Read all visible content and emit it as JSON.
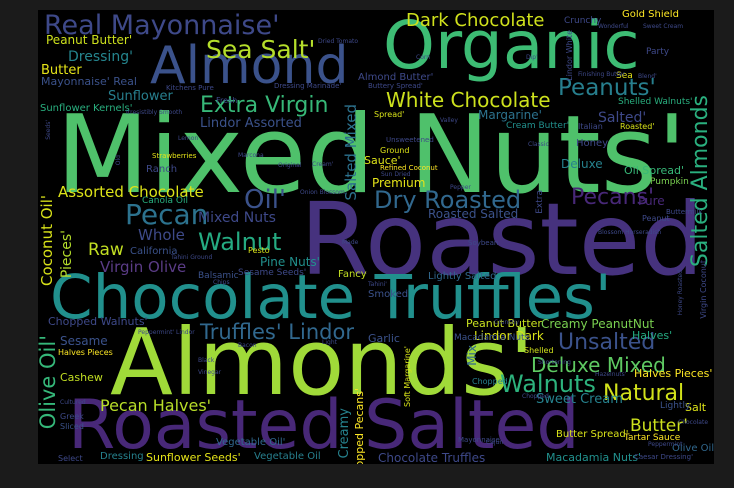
{
  "words": [
    {
      "id": "mixed-nuts",
      "text": "Mixed Nuts'",
      "color": "#4fc16b"
    },
    {
      "id": "roasted-big",
      "text": "Roasted",
      "color": "#46327e"
    },
    {
      "id": "chocolate-truffles-big",
      "text": "Chocolate Truffles'",
      "color": "#21908d"
    },
    {
      "id": "almonds-big",
      "text": "Almonds'",
      "color": "#a0da39"
    },
    {
      "id": "roasted-salted-big",
      "text": "Roasted Salted",
      "color": "#482878"
    },
    {
      "id": "organic",
      "text": "Organic",
      "color": "#3dbc74"
    },
    {
      "id": "almond",
      "text": "Almond",
      "color": "#3b528b"
    },
    {
      "id": "real-mayonnaise",
      "text": "Real Mayonnaise'",
      "color": "#3e4989"
    },
    {
      "id": "sea-salt",
      "text": "Sea Salt'",
      "color": "#b5de2b"
    },
    {
      "id": "dark-chocolate",
      "text": "Dark Chocolate",
      "color": "#d0e11c"
    },
    {
      "id": "peanuts",
      "text": "Peanuts'",
      "color": "#277f8e"
    },
    {
      "id": "white-chocolate",
      "text": "White Chocolate",
      "color": "#cde11d"
    },
    {
      "id": "extra-virgin",
      "text": "Extra Virgin",
      "color": "#37b878"
    },
    {
      "id": "salted-almonds",
      "text": "Salted Almonds",
      "color": "#2ab07f"
    },
    {
      "id": "oil",
      "text": "Oil'",
      "color": "#3b528b"
    },
    {
      "id": "dry-roasted",
      "text": "Dry Roasted",
      "color": "#31688e"
    },
    {
      "id": "pecans",
      "text": "Pecans'",
      "color": "#482878"
    },
    {
      "id": "pecan",
      "text": "Pecan",
      "color": "#2c728e"
    },
    {
      "id": "walnut",
      "text": "Walnut",
      "color": "#25ab82"
    },
    {
      "id": "assorted-chocolate",
      "text": "Assorted Chocolate",
      "color": "#dde318"
    },
    {
      "id": "unsalted",
      "text": "Unsalted",
      "color": "#3b528b"
    },
    {
      "id": "deluxe-mixed",
      "text": "Deluxe Mixed",
      "color": "#5ec962"
    },
    {
      "id": "walnuts",
      "text": "Walnuts",
      "color": "#2db27d"
    },
    {
      "id": "natural",
      "text": "Natural",
      "color": "#d2e21b"
    },
    {
      "id": "truffles-lindor",
      "text": "Truffles' Lindor",
      "color": "#31688e"
    },
    {
      "id": "olive-oil-v",
      "text": "Olive Oil'",
      "color": "#35b779"
    },
    {
      "id": "pecan-halves",
      "text": "Pecan Halves'",
      "color": "#b8de29"
    },
    {
      "id": "butter-r",
      "text": "Butter'",
      "color": "#cde11d"
    },
    {
      "id": "coconut-oil-v",
      "text": "Coconut Oil'",
      "color": "#d8e219"
    },
    {
      "id": "pieces-v",
      "text": "Pieces'",
      "color": "#b5de2b"
    },
    {
      "id": "raw",
      "text": "Raw",
      "color": "#c2df23"
    },
    {
      "id": "whole",
      "text": "Whole",
      "color": "#3e4a89"
    },
    {
      "id": "mixed-nuts-small",
      "text": "Mixed Nuts",
      "color": "#3e4989"
    },
    {
      "id": "virgin-olive",
      "text": "Virgin Olive",
      "color": "#5b3c87"
    },
    {
      "id": "salted-mixed-v",
      "text": "Salted Mixed",
      "color": "#2c728e"
    },
    {
      "id": "peanut-butter-tl",
      "text": "Peanut Butter'",
      "color": "#cde11d"
    },
    {
      "id": "dressing-tl",
      "text": "Dressing'",
      "color": "#25858e"
    },
    {
      "id": "butter-l",
      "text": "Butter",
      "color": "#e5e419"
    },
    {
      "id": "mayonnaise-real",
      "text": "Mayonnaise' Real",
      "color": "#3b528b"
    },
    {
      "id": "sunflower",
      "text": "Sunflower",
      "color": "#277f8e"
    },
    {
      "id": "sunflower-kernels",
      "text": "Sunflower Kernels'",
      "color": "#29af7f"
    },
    {
      "id": "lindor-assorted",
      "text": "Lindor Assorted",
      "color": "#3b528b"
    },
    {
      "id": "creamy-peanutnut",
      "text": "Creamy PeanutNut",
      "color": "#7ad151"
    },
    {
      "id": "sweet-cream",
      "text": "Sweet Cream",
      "color": "#26828e"
    },
    {
      "id": "lindor-dark",
      "text": "Lindor Dark",
      "color": "#d8e219"
    },
    {
      "id": "peanut-butter-r",
      "text": "Peanut Butter",
      "color": "#c8e020"
    },
    {
      "id": "macadamia-nuts-b",
      "text": "Macadamia Nuts'",
      "color": "#21908d"
    },
    {
      "id": "chocolate-truffles-b",
      "text": "Chocolate Truffles",
      "color": "#3e4989"
    },
    {
      "id": "sunflower-seeds",
      "text": "Sunflower Seeds'",
      "color": "#e5e419"
    },
    {
      "id": "vegetable-oil",
      "text": "Vegetable Oil'",
      "color": "#31688e"
    },
    {
      "id": "vegetable-oil-b",
      "text": "Vegetable Oil",
      "color": "#277f8e"
    },
    {
      "id": "dressing-b",
      "text": "Dressing",
      "color": "#26828e"
    },
    {
      "id": "creamy-v",
      "text": "Creamy",
      "color": "#26828e"
    },
    {
      "id": "chopped-pecans-v",
      "text": "Chopped Pecans'",
      "color": "#fde725"
    },
    {
      "id": "chopped-walnuts",
      "text": "Chopped Walnuts'",
      "color": "#3e4989"
    },
    {
      "id": "sesame",
      "text": "Sesame",
      "color": "#3b528b"
    },
    {
      "id": "halves-pieces",
      "text": "Halves Pieces",
      "color": "#fde725"
    },
    {
      "id": "cashew",
      "text": "Cashew",
      "color": "#c2df23"
    },
    {
      "id": "mix-v",
      "text": "Mix",
      "color": "#31688e"
    },
    {
      "id": "margarine",
      "text": "Margarine'",
      "color": "#2c728e"
    },
    {
      "id": "salted-r",
      "text": "Salted'",
      "color": "#3e4989"
    },
    {
      "id": "roasted-salted-m",
      "text": "Roasted Salted",
      "color": "#3b528b"
    },
    {
      "id": "premium",
      "text": "Premium",
      "color": "#e5e419"
    },
    {
      "id": "sauce",
      "text": "Sauce'",
      "color": "#dde318"
    },
    {
      "id": "deluxe",
      "text": "Deluxe",
      "color": "#26828e"
    },
    {
      "id": "gold-shield",
      "text": "Gold Shield",
      "color": "#fde725"
    },
    {
      "id": "crunchy",
      "text": "Crunchy",
      "color": "#3e4989"
    },
    {
      "id": "party",
      "text": "Party",
      "color": "#3e4989"
    },
    {
      "id": "sea-r",
      "text": "Sea",
      "color": "#e5e419"
    },
    {
      "id": "shelled-walnuts",
      "text": "Shelled Walnuts'",
      "color": "#29af7f"
    },
    {
      "id": "almond-butter",
      "text": "Almond Butter'",
      "color": "#3e4989"
    },
    {
      "id": "oil-spread",
      "text": "Oil Spread'",
      "color": "#37b878"
    },
    {
      "id": "pure",
      "text": "Pure",
      "color": "#482878"
    },
    {
      "id": "halves-r",
      "text": "Halves'",
      "color": "#25ab82"
    },
    {
      "id": "halves-pieces-r",
      "text": "Halves Pieces'",
      "color": "#fde725"
    },
    {
      "id": "salt-r",
      "text": "Salt",
      "color": "#dde318"
    },
    {
      "id": "olive-oil-r",
      "text": "Olive Oil",
      "color": "#31688e"
    },
    {
      "id": "tartar-sauce",
      "text": "Tartar Sauce",
      "color": "#fde725"
    },
    {
      "id": "lightly",
      "text": "Lightly",
      "color": "#3b528b"
    },
    {
      "id": "butter-spread",
      "text": "Butter Spread'",
      "color": "#d8e219"
    },
    {
      "id": "fancy",
      "text": "Fancy",
      "color": "#c2df23"
    },
    {
      "id": "smoked",
      "text": "Smoked",
      "color": "#3b528b"
    },
    {
      "id": "garlic",
      "text": "Garlic",
      "color": "#3b528b"
    },
    {
      "id": "lightly-salted",
      "text": "Lightly Salted",
      "color": "#31688e"
    },
    {
      "id": "pine-nuts",
      "text": "Pine Nuts'",
      "color": "#21908d"
    },
    {
      "id": "shelled",
      "text": "Shelled",
      "color": "#d0e11c"
    },
    {
      "id": "macadamia-nuts-m",
      "text": "Macadamia Nuts",
      "color": "#3b528b"
    },
    {
      "id": "chopped",
      "text": "Chopped",
      "color": "#277f8e"
    },
    {
      "id": "cream-butter",
      "text": "Cream Butter'",
      "color": "#21908d"
    },
    {
      "id": "honey",
      "text": "Honey",
      "color": "#3e4989"
    },
    {
      "id": "pumpkin",
      "text": "Pumpkin",
      "color": "#7ad151"
    },
    {
      "id": "roasted-small",
      "text": "Roasted'",
      "color": "#d8e219"
    },
    {
      "id": "italian",
      "text": "Italian",
      "color": "#3e4989"
    },
    {
      "id": "fresh",
      "text": "Fresh",
      "color": "#3e4989"
    },
    {
      "id": "ranch",
      "text": "Ranch",
      "color": "#3e4989"
    },
    {
      "id": "canola-oil",
      "text": "Canola Oil",
      "color": "#29af7f"
    },
    {
      "id": "california",
      "text": "California",
      "color": "#3b528b"
    },
    {
      "id": "balsamic",
      "text": "Balsamic",
      "color": "#3b528b"
    },
    {
      "id": "sesame-seeds",
      "text": "Sesame Seeds'",
      "color": "#3e4989"
    },
    {
      "id": "pesto",
      "text": "Pesto",
      "color": "#d8e219"
    },
    {
      "id": "greek",
      "text": "Greek",
      "color": "#3e4989"
    },
    {
      "id": "sliced",
      "text": "Sliced",
      "color": "#3b528b"
    },
    {
      "id": "select",
      "text": "Select",
      "color": "#3e4989"
    },
    {
      "id": "peanut",
      "text": "Peanut",
      "color": "#3e4989"
    },
    {
      "id": "buttermilk",
      "text": "Buttermilk",
      "color": "#3e4989"
    },
    {
      "id": "soybean",
      "text": "Soybean",
      "color": "#3e4989"
    },
    {
      "id": "mayonnaise-s",
      "text": "Mayonnaise",
      "color": "#3e4989"
    },
    {
      "id": "soft-margarine-v",
      "text": "Soft Margarine'",
      "color": "#d8e219"
    },
    {
      "id": "dressing-marinade",
      "text": "Dressing Marinade'",
      "color": "#3e4989"
    },
    {
      "id": "kitchens-pure",
      "text": "Kitchens Pure",
      "color": "#3e4989"
    },
    {
      "id": "refined-coconut",
      "text": "Refined Coconut",
      "color": "#fde725"
    },
    {
      "id": "ground",
      "text": "Ground",
      "color": "#dde318"
    },
    {
      "id": "unsweetened",
      "text": "Unsweetened",
      "color": "#3e4989"
    },
    {
      "id": "spread",
      "text": "Spread'",
      "color": "#d8e219"
    },
    {
      "id": "buttery-spread",
      "text": "Buttery Spread'",
      "color": "#3e4989"
    },
    {
      "id": "strawberries",
      "text": "Strawberries",
      "color": "#e5e419"
    },
    {
      "id": "lindor-white-v",
      "text": "Lindor White",
      "color": "#3e4989"
    },
    {
      "id": "virgin-coconut-v",
      "text": "Virgin Coconut",
      "color": "#3e4989"
    },
    {
      "id": "extra-v",
      "text": "Extra",
      "color": "#3e4989"
    },
    {
      "id": "caesar-dressing",
      "text": "Caesar Dressing'",
      "color": "#3e4989"
    },
    {
      "id": "blossom-horseradish",
      "text": "Blossom Horseradish",
      "color": "#3e4989"
    },
    {
      "id": "cajun",
      "text": "Cajun",
      "color": "#3e4989"
    },
    {
      "id": "chocolate-s",
      "text": "Chocolate",
      "color": "#3e4989"
    },
    {
      "id": "hazelnuts",
      "text": "Hazelnuts'",
      "color": "#3e4989"
    },
    {
      "id": "peppermint",
      "text": "Peppermint",
      "color": "#3e4989"
    },
    {
      "id": "shortening",
      "text": "Shortening",
      "color": "#3e4989"
    },
    {
      "id": "tahini",
      "text": "Tahini'",
      "color": "#3e4989"
    },
    {
      "id": "made",
      "text": "Made",
      "color": "#3e4989"
    },
    {
      "id": "black",
      "text": "Black",
      "color": "#3e4989"
    },
    {
      "id": "vinegar",
      "text": "Vinegar",
      "color": "#3e4989"
    },
    {
      "id": "irresistibly-smooth",
      "text": "Irresistibly Smooth",
      "color": "#3e4989"
    },
    {
      "id": "wonderful",
      "text": "Wonderful",
      "color": "#3e4989"
    },
    {
      "id": "sweet-cream-s",
      "text": "Sweet Cream",
      "color": "#3e4989"
    },
    {
      "id": "classic",
      "text": "Classic",
      "color": "#3e4989"
    },
    {
      "id": "onion-blossom",
      "text": "Onion Blossom",
      "color": "#3e4989"
    },
    {
      "id": "sun-dried",
      "text": "Sun Dried",
      "color": "#3e4989"
    },
    {
      "id": "dried-tomato",
      "text": "Dried Tomato",
      "color": "#3e4989"
    },
    {
      "id": "pepper",
      "text": "Pepper",
      "color": "#3e4989"
    },
    {
      "id": "cream",
      "text": "Cream'",
      "color": "#3e4989"
    },
    {
      "id": "original",
      "text": "Original",
      "color": "#3e4989"
    },
    {
      "id": "lemon",
      "text": "Lemon",
      "color": "#3e4989"
    },
    {
      "id": "marcona",
      "text": "Marcona",
      "color": "#3e4989"
    },
    {
      "id": "seeds-v",
      "text": "Seeds'",
      "color": "#3e4989"
    },
    {
      "id": "old-v",
      "text": "Old",
      "color": "#3e4989"
    },
    {
      "id": "corn",
      "text": "Corn",
      "color": "#3e4989"
    },
    {
      "id": "valley",
      "text": "Valley",
      "color": "#3e4989"
    },
    {
      "id": "bacon",
      "text": "Bacon",
      "color": "#3e4989"
    },
    {
      "id": "light",
      "text": "Light",
      "color": "#3e4989"
    },
    {
      "id": "finishing-butter",
      "text": "Finishing Butter",
      "color": "#3e4989"
    },
    {
      "id": "dip",
      "text": "Dip'",
      "color": "#3e4989"
    },
    {
      "id": "chips",
      "text": "Chips",
      "color": "#3e4989"
    },
    {
      "id": "tahini-ground",
      "text": "Tahini Ground",
      "color": "#3e4989"
    },
    {
      "id": "peppermint-lindor",
      "text": "Peppermint' Lindor",
      "color": "#3e4989"
    },
    {
      "id": "crunchy-s",
      "text": "Crunchy",
      "color": "#3e4989"
    },
    {
      "id": "honey-roasted-v",
      "text": "Honey Roasted",
      "color": "#3e4989"
    },
    {
      "id": "cultured",
      "text": "Cultured",
      "color": "#3e4989"
    },
    {
      "id": "blend",
      "text": "Blend'",
      "color": "#3e4989"
    },
    {
      "id": "chopped-s",
      "text": "Chopped",
      "color": "#3e4989"
    }
  ]
}
